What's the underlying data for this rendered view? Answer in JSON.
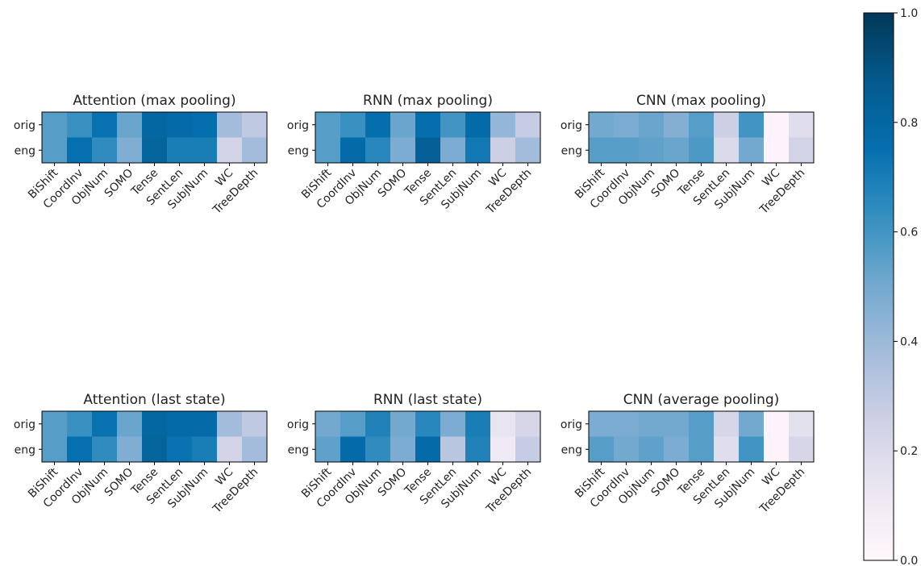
{
  "chart_data": {
    "type": "heatmap",
    "rows": [
      "orig",
      "eng"
    ],
    "columns": [
      "BiShift",
      "CoordInv",
      "ObjNum",
      "SOMO",
      "Tense",
      "SentLen",
      "SubjNum",
      "WC",
      "TreeDepth"
    ],
    "colorbar": {
      "min": 0.0,
      "max": 1.0,
      "ticks": [
        "0.0",
        "0.2",
        "0.4",
        "0.6",
        "0.8",
        "1.0"
      ],
      "colormap": "PuBu"
    },
    "panels": [
      {
        "title": "Attention (max pooling)",
        "values": [
          [
            0.56,
            0.62,
            0.74,
            0.52,
            0.8,
            0.78,
            0.76,
            0.38,
            0.3
          ],
          [
            0.56,
            0.75,
            0.64,
            0.47,
            0.82,
            0.7,
            0.7,
            0.24,
            0.38
          ]
        ]
      },
      {
        "title": "RNN (max pooling)",
        "values": [
          [
            0.56,
            0.62,
            0.76,
            0.52,
            0.76,
            0.6,
            0.78,
            0.42,
            0.28
          ],
          [
            0.56,
            0.78,
            0.66,
            0.48,
            0.84,
            0.48,
            0.72,
            0.26,
            0.38
          ]
        ]
      },
      {
        "title": "CNN (max pooling)",
        "values": [
          [
            0.5,
            0.48,
            0.52,
            0.46,
            0.56,
            0.26,
            0.6,
            0.02,
            0.18
          ],
          [
            0.56,
            0.56,
            0.54,
            0.52,
            0.58,
            0.2,
            0.5,
            0.02,
            0.24
          ]
        ]
      },
      {
        "title": "Attention (last state)",
        "values": [
          [
            0.56,
            0.62,
            0.74,
            0.52,
            0.8,
            0.78,
            0.78,
            0.38,
            0.3
          ],
          [
            0.56,
            0.75,
            0.64,
            0.47,
            0.82,
            0.74,
            0.7,
            0.24,
            0.38
          ]
        ]
      },
      {
        "title": "RNN (last state)",
        "values": [
          [
            0.5,
            0.56,
            0.68,
            0.5,
            0.66,
            0.48,
            0.7,
            0.14,
            0.22
          ],
          [
            0.54,
            0.78,
            0.64,
            0.48,
            0.78,
            0.32,
            0.68,
            0.1,
            0.28
          ]
        ]
      },
      {
        "title": "CNN (average pooling)",
        "values": [
          [
            0.48,
            0.48,
            0.5,
            0.5,
            0.56,
            0.22,
            0.5,
            0.02,
            0.16
          ],
          [
            0.56,
            0.5,
            0.54,
            0.48,
            0.56,
            0.18,
            0.6,
            0.02,
            0.22
          ]
        ]
      }
    ]
  }
}
